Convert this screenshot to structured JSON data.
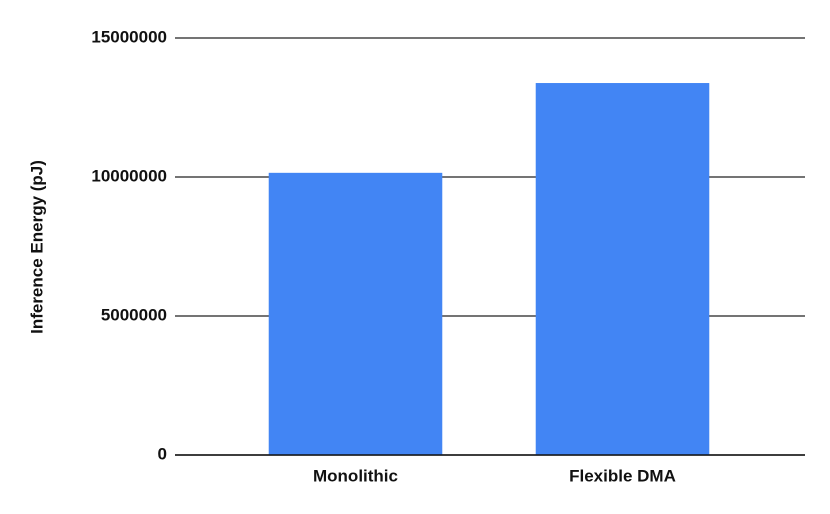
{
  "chart_data": {
    "type": "bar",
    "y_label": "Inference Energy (pJ)",
    "categories": [
      "Monolithic",
      "Flexible DMA"
    ],
    "values": [
      10150000,
      13380000
    ],
    "color": "#4285f4",
    "ylim": [
      0,
      15000000
    ],
    "yticks": [
      0,
      5000000,
      10000000,
      15000000
    ],
    "grid": true
  }
}
